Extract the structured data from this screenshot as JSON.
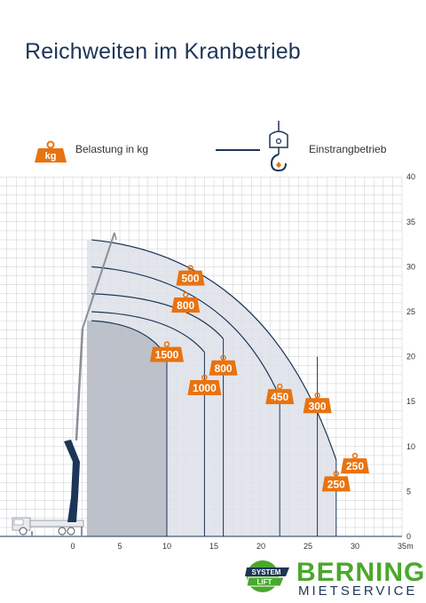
{
  "title": "Reichweiten  im Kranbetrieb",
  "legend": {
    "load_badge": "kg",
    "load_text": "Belastung in kg",
    "line_text": "Einstrangbetrieb"
  },
  "colors": {
    "orange": "#e8730f",
    "navy": "#1d3557",
    "grid": "#c9ccd1",
    "envelope_light": "#dde1e7",
    "envelope_dark": "#b3b8c2",
    "green": "#4aa82c"
  },
  "chart_data": {
    "type": "area",
    "xlabel": "m",
    "ylabel": "",
    "xlim": [
      -8,
      35
    ],
    "ylim": [
      0,
      40
    ],
    "x_ticks": [
      0,
      5,
      10,
      15,
      20,
      25,
      30,
      35
    ],
    "y_ticks": [
      0,
      5,
      10,
      15,
      20,
      25,
      30,
      35,
      40
    ],
    "grid": true,
    "reach_curves": [
      {
        "start": [
          2.0,
          33.0
        ],
        "end": [
          28.0,
          8.5
        ],
        "fill": "envelope_light"
      },
      {
        "start": [
          2.0,
          30.0
        ],
        "end": [
          22.0,
          15.5
        ],
        "fill": "none"
      },
      {
        "start": [
          2.0,
          27.0
        ],
        "end": [
          16.0,
          22.0
        ],
        "fill": "none"
      },
      {
        "start": [
          2.0,
          25.0
        ],
        "end": [
          14.0,
          20.5
        ],
        "fill": "none"
      },
      {
        "start": [
          2.0,
          24.0
        ],
        "end": [
          10.0,
          20.0
        ],
        "fill": "envelope_dark"
      }
    ],
    "loads": [
      {
        "value": "500",
        "x": 12.5,
        "y": 28.5
      },
      {
        "value": "800",
        "x": 12.0,
        "y": 25.5
      },
      {
        "value": "1500",
        "x": 10.0,
        "y": 20.0
      },
      {
        "value": "1000",
        "x": 14.0,
        "y": 16.3
      },
      {
        "value": "800",
        "x": 16.0,
        "y": 18.5
      },
      {
        "value": "450",
        "x": 22.0,
        "y": 15.3
      },
      {
        "value": "300",
        "x": 26.0,
        "y": 14.3
      },
      {
        "value": "250",
        "x": 30.0,
        "y": 7.6
      },
      {
        "value": "250",
        "x": 28.0,
        "y": 5.6
      }
    ],
    "verticals": [
      10,
      14,
      16,
      22,
      26,
      28
    ]
  },
  "logo": {
    "badge_top": "SYSTEM",
    "badge_bottom": "LIFT",
    "brand": "BERNING",
    "sub": "MIETSERVICE"
  }
}
